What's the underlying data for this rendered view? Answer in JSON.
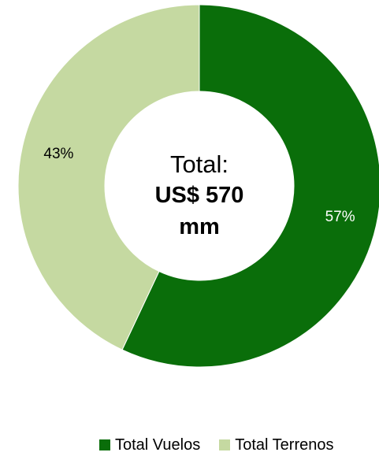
{
  "chart_data": {
    "type": "pie",
    "donut": true,
    "categories": [
      "Total Vuelos",
      "Total Terrenos"
    ],
    "values": [
      57,
      43
    ],
    "data_labels": [
      "57%",
      "43%"
    ],
    "colors": [
      "#0a6e0a",
      "#c5d9a1"
    ],
    "legend_position": "bottom",
    "center_text": {
      "line1": "Total:",
      "line2": "US$ 570",
      "line3": "mm"
    }
  },
  "legend": {
    "items": [
      {
        "label": "Total Vuelos",
        "color": "#0a6e0a"
      },
      {
        "label": "Total Terrenos",
        "color": "#c5d9a1"
      }
    ]
  }
}
